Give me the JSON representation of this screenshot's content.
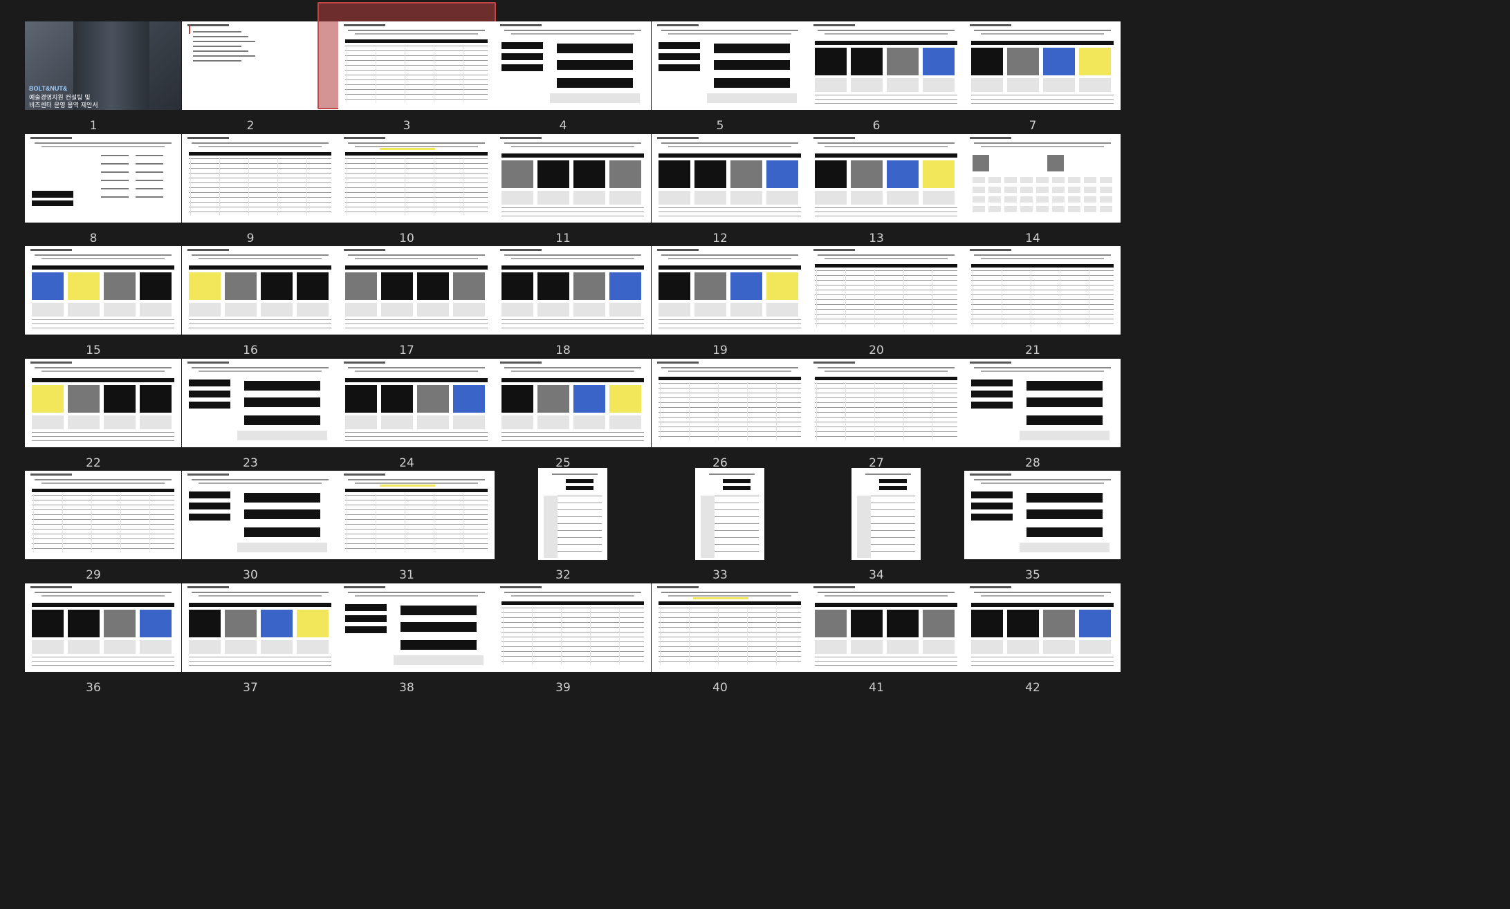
{
  "selected_slide": 3,
  "cover": {
    "brand": "BOLT&NUT&",
    "line1": "예술경영지원 컨설팅 및",
    "line2": "비즈센터 운영 용역 제안서"
  },
  "slides": [
    {
      "n": "1",
      "kind": "cover"
    },
    {
      "n": "2",
      "kind": "toc"
    },
    {
      "n": "3",
      "kind": "table"
    },
    {
      "n": "4",
      "kind": "flow"
    },
    {
      "n": "5",
      "kind": "flow"
    },
    {
      "n": "6",
      "kind": "photos"
    },
    {
      "n": "7",
      "kind": "photos"
    },
    {
      "n": "8",
      "kind": "text"
    },
    {
      "n": "9",
      "kind": "table"
    },
    {
      "n": "10",
      "kind": "table"
    },
    {
      "n": "11",
      "kind": "photos"
    },
    {
      "n": "12",
      "kind": "photos"
    },
    {
      "n": "13",
      "kind": "photos"
    },
    {
      "n": "14",
      "kind": "logos"
    },
    {
      "n": "15",
      "kind": "photos"
    },
    {
      "n": "16",
      "kind": "photos"
    },
    {
      "n": "17",
      "kind": "photos"
    },
    {
      "n": "18",
      "kind": "photos"
    },
    {
      "n": "19",
      "kind": "photos"
    },
    {
      "n": "20",
      "kind": "table"
    },
    {
      "n": "21",
      "kind": "table"
    },
    {
      "n": "22",
      "kind": "photos"
    },
    {
      "n": "23",
      "kind": "flow"
    },
    {
      "n": "24",
      "kind": "photos"
    },
    {
      "n": "25",
      "kind": "photos"
    },
    {
      "n": "26",
      "kind": "table"
    },
    {
      "n": "27",
      "kind": "table"
    },
    {
      "n": "28",
      "kind": "flow"
    },
    {
      "n": "29",
      "kind": "table"
    },
    {
      "n": "30",
      "kind": "flow"
    },
    {
      "n": "31",
      "kind": "table"
    },
    {
      "n": "32",
      "kind": "portrait"
    },
    {
      "n": "33",
      "kind": "portrait"
    },
    {
      "n": "34",
      "kind": "portrait"
    },
    {
      "n": "35",
      "kind": "flow"
    },
    {
      "n": "36",
      "kind": "photos"
    },
    {
      "n": "37",
      "kind": "photos"
    },
    {
      "n": "38",
      "kind": "flow"
    },
    {
      "n": "39",
      "kind": "table"
    },
    {
      "n": "40",
      "kind": "table"
    },
    {
      "n": "41",
      "kind": "photos"
    },
    {
      "n": "42",
      "kind": "photos"
    }
  ],
  "colors": {
    "background": "#1b1b1b",
    "selection": "#c44545"
  }
}
